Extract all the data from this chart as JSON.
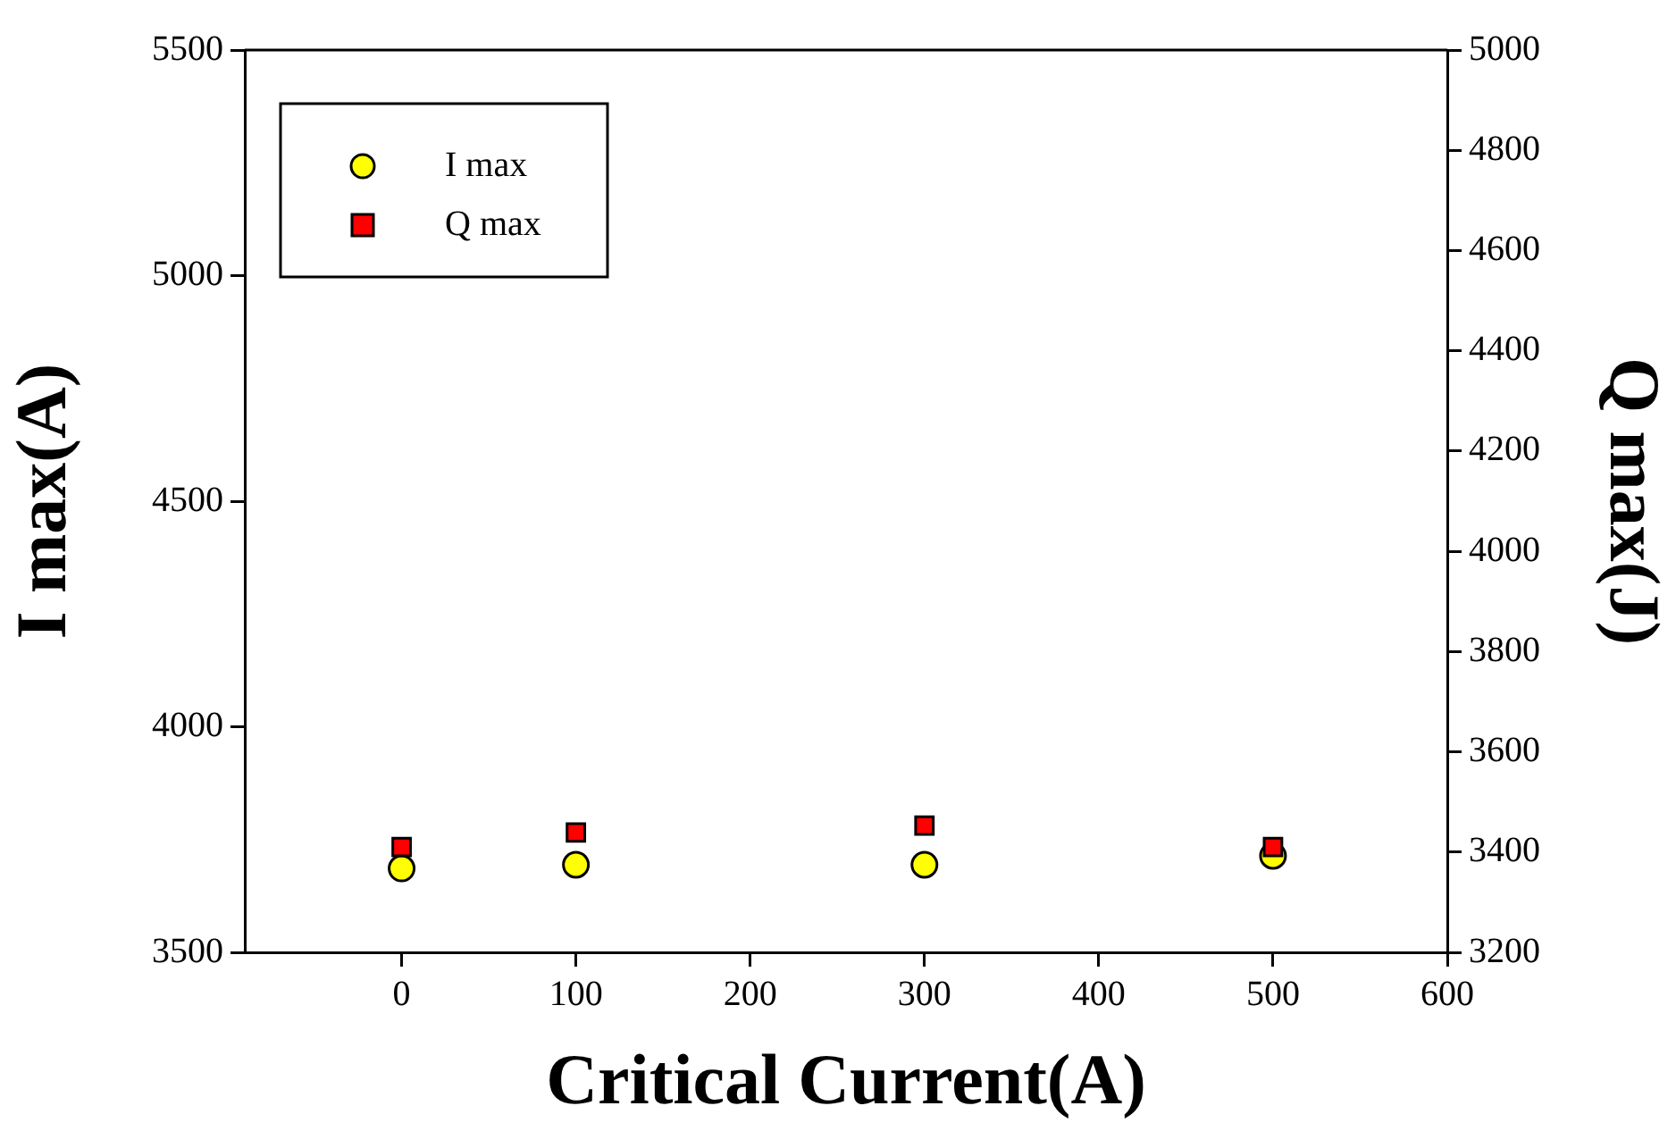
{
  "chart_data": {
    "type": "scatter",
    "xlabel": "Critical Current(A)",
    "ylabel": "I max(A)",
    "y2label": "Q max(J)",
    "x": [
      0,
      100,
      300,
      500
    ],
    "series": [
      {
        "name": "I max",
        "color": "#ffff00",
        "marker": "circle",
        "values": [
          3686,
          3694,
          3694,
          3714
        ]
      },
      {
        "name": "Q max",
        "color": "#ff0000",
        "marker": "square",
        "axis": "y2",
        "values": [
          3410,
          3439,
          3453,
          3410
        ]
      }
    ],
    "xlim": [
      -90,
      600
    ],
    "xticks": [
      0,
      100,
      200,
      300,
      400,
      500,
      600
    ],
    "ylim": [
      3500,
      5500
    ],
    "yticks": [
      3500,
      4000,
      4500,
      5000,
      5500
    ],
    "y2lim": [
      3200,
      5000
    ],
    "y2ticks": [
      3200,
      3400,
      3600,
      3800,
      4000,
      4200,
      4400,
      4600,
      4800,
      5000
    ],
    "grid": false,
    "legend": "top left"
  }
}
